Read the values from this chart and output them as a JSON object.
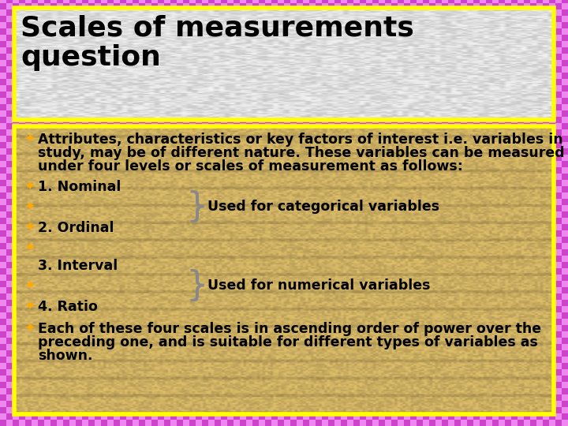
{
  "title_line1": "Scales of measurements",
  "title_line2": "question",
  "background_color": "#cc44cc",
  "title_box_color": "#d0d0d0",
  "content_box_color": "#dfc070",
  "title_text_color": "#000000",
  "content_text_color": "#000000",
  "bullet_color": "#ffaa00",
  "border_color": "#ffff00",
  "bullet_char": "✦",
  "categorical_label": "Used for categorical variables",
  "numerical_label": "Used for numerical variables",
  "font_size_title": 26,
  "font_size_content": 12.5,
  "brace_color": "#888888"
}
